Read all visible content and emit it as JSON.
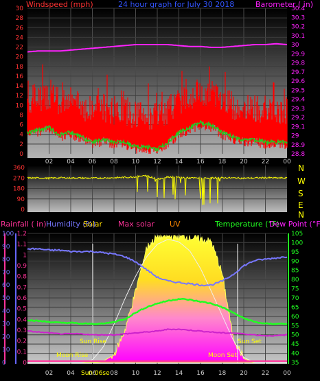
{
  "title": "24 hour graph for  July 30 2018",
  "colors": {
    "wind": "#ff0000",
    "gust_base": "#22cc22",
    "baro": "#ff22ff",
    "winddir": "#ffff00",
    "rain": "#ff3399",
    "humidity": "#7777ff",
    "solar": "#ffdd00",
    "maxsolar": "#ffffff",
    "temp": "#22ff22",
    "dewpoint": "#cc22cc",
    "uv": "#ff44ff",
    "axis_left": "#ff3333",
    "axis_right": "#ff22ff",
    "axis_green": "#22ff22",
    "axis_blue": "#6666ff"
  },
  "panel1": {
    "left_label": "Windspeed (mph)",
    "right_label": "Barometer ( in)",
    "left_ticks": [
      "0",
      "2",
      "4",
      "6",
      "8",
      "10",
      "12",
      "14",
      "16",
      "18",
      "20",
      "22",
      "24",
      "26",
      "28",
      "30"
    ],
    "right_ticks": [
      "28.8",
      "28.9",
      "29",
      "29.1",
      "29.2",
      "29.3",
      "29.4",
      "29.5",
      "29.6",
      "29.7",
      "29.8",
      "29.9",
      "30",
      "30.1",
      "30.2",
      "30.3",
      "30.4"
    ]
  },
  "panel2": {
    "left_ticks": [
      "0",
      "90",
      "180",
      "270",
      "360"
    ],
    "compass": [
      "N",
      "W",
      "S",
      "E",
      "N"
    ]
  },
  "panel3": {
    "rain_label": "Rainfall ( in)",
    "hum_label": "Humidity (%)",
    "solar_label": "Solar",
    "maxsolar_label": "Max solar",
    "uv_label": "UV",
    "temp_label": "Temperature (°F)",
    "dew_label": "Dew Point (°F)",
    "rain_ticks": [
      "0",
      "0.1",
      "0.2",
      "0.3",
      "0.4",
      "0.5",
      "0.6",
      "0.7",
      "0.8",
      "0.9",
      "1",
      "1.1",
      "1.2"
    ],
    "hum_ticks": [
      "0",
      "10",
      "20",
      "30",
      "40",
      "50",
      "60",
      "70",
      "80",
      "90",
      "100"
    ],
    "temp_ticks": [
      "35",
      "40",
      "45",
      "50",
      "55",
      "60",
      "65",
      "70",
      "75",
      "80",
      "85",
      "90",
      "95",
      "100",
      "105"
    ],
    "annotations": {
      "sunrise": "Sun Rise",
      "sunset": "Sun Set",
      "moonrise": "Moon Rise",
      "moonset": "Moon Set",
      "sunrise_time": "Sun 06se"
    }
  },
  "x_ticks": [
    "02",
    "04",
    "06",
    "08",
    "10",
    "12",
    "14",
    "16",
    "18",
    "20",
    "22",
    "00"
  ],
  "chart_data": [
    {
      "type": "line",
      "x": [
        0,
        1,
        2,
        3,
        4,
        5,
        6,
        7,
        8,
        9,
        10,
        11,
        12,
        13,
        14,
        15,
        16,
        17,
        18,
        19,
        20,
        21,
        22,
        23,
        24
      ],
      "series": [
        {
          "name": "Windspeed (mph)",
          "values": [
            8,
            8.5,
            9,
            7.5,
            8,
            7,
            6,
            6.5,
            6,
            6,
            5,
            5,
            4.5,
            6,
            8,
            9,
            10,
            9.5,
            8,
            7,
            6.5,
            6.5,
            6,
            6,
            6
          ]
        },
        {
          "name": "Barometer ( in)",
          "values": [
            29.92,
            29.93,
            29.93,
            29.93,
            29.94,
            29.95,
            29.96,
            29.97,
            29.98,
            29.99,
            30.0,
            30.0,
            30.0,
            30.0,
            29.99,
            29.98,
            29.98,
            29.97,
            29.97,
            29.98,
            29.99,
            30.0,
            30.0,
            30.01,
            30.0
          ]
        }
      ],
      "ylim_left": [
        0,
        30
      ],
      "ylim_right": [
        28.8,
        30.4
      ]
    },
    {
      "type": "scatter",
      "x": [
        0,
        1,
        2,
        3,
        4,
        5,
        6,
        7,
        8,
        9,
        10,
        11,
        12,
        13,
        14,
        15,
        16,
        17,
        18,
        19,
        20,
        21,
        22,
        23,
        24
      ],
      "series": [
        {
          "values": [
            270,
            270,
            268,
            272,
            270,
            270,
            268,
            270,
            272,
            275,
            280,
            290,
            260,
            280,
            275,
            270,
            268,
            270,
            272,
            270,
            268,
            270,
            272,
            270,
            270
          ]
        }
      ],
      "ylim": [
        0,
        360
      ]
    },
    {
      "type": "line",
      "x": [
        0,
        1,
        2,
        3,
        4,
        5,
        6,
        7,
        8,
        9,
        10,
        11,
        12,
        13,
        14,
        15,
        16,
        17,
        18,
        19,
        20,
        21,
        22,
        23,
        24
      ],
      "series": [
        {
          "name": "Humidity (%)",
          "values": [
            88,
            88,
            87,
            87,
            86,
            86,
            86,
            85,
            84,
            82,
            78,
            72,
            66,
            63,
            62,
            61,
            60,
            60,
            63,
            68,
            75,
            79,
            80,
            81,
            82
          ]
        },
        {
          "name": "Temperature (°F)",
          "values": [
            58,
            57.5,
            57,
            56.5,
            56.5,
            56,
            56,
            56,
            57,
            58.5,
            62,
            65,
            67,
            68.5,
            69.5,
            69,
            68,
            67,
            65,
            62,
            59,
            57,
            56,
            56,
            56
          ]
        },
        {
          "name": "Dew Point (°F)",
          "values": [
            52,
            51.5,
            51,
            50.5,
            50.5,
            50.5,
            50,
            50,
            50,
            50.5,
            51,
            51.5,
            52,
            53,
            53,
            52.5,
            52,
            51.5,
            51,
            51,
            50.5,
            50,
            49.5,
            49.5,
            50
          ]
        },
        {
          "name": "Solar",
          "values": [
            0,
            0,
            0,
            0,
            0,
            0,
            1,
            10,
            60,
            250,
            560,
            900,
            990,
            990,
            990,
            985,
            970,
            950,
            700,
            200,
            30,
            0,
            0,
            0,
            0
          ]
        },
        {
          "name": "Max solar",
          "values": [
            0,
            0,
            0,
            0,
            0,
            0,
            20,
            120,
            300,
            500,
            680,
            830,
            930,
            970,
            950,
            880,
            740,
            560,
            370,
            180,
            40,
            0,
            0,
            0,
            0
          ]
        }
      ],
      "ylim_rain": [
        0,
        1.2
      ],
      "ylim_hum": [
        0,
        100
      ],
      "ylim_temp": [
        35,
        105
      ]
    }
  ]
}
